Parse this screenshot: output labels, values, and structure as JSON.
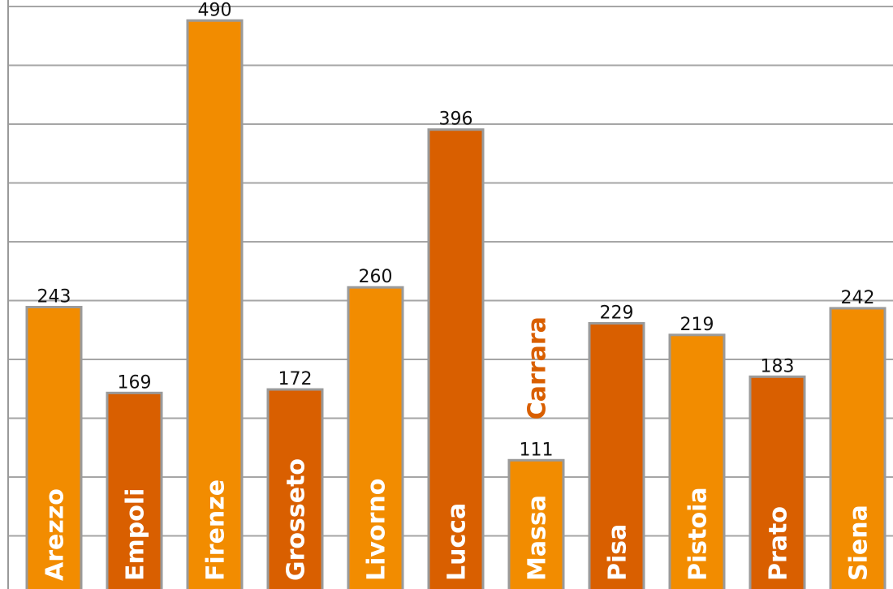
{
  "chart_data": {
    "type": "bar",
    "categories": [
      "Arezzo",
      "Empoli",
      "Firenze",
      "Grosseto",
      "Livorno",
      "Lucca",
      "Massa Carrara",
      "Pisa",
      "Pistoia",
      "Prato",
      "Siena"
    ],
    "values": [
      243,
      169,
      490,
      172,
      260,
      396,
      111,
      229,
      219,
      183,
      242
    ],
    "label_lines": [
      [
        "Arezzo"
      ],
      [
        "Empoli"
      ],
      [
        "Firenze"
      ],
      [
        "Grosseto"
      ],
      [
        "Livorno"
      ],
      [
        "Lucca"
      ],
      [
        "Massa",
        "Carrara"
      ],
      [
        "Pisa"
      ],
      [
        "Pistoia"
      ],
      [
        "Prato"
      ],
      [
        "Siena"
      ]
    ],
    "bar_colors": [
      "#F28C00",
      "#D95F00",
      "#F28C00",
      "#D95F00",
      "#F28C00",
      "#D95F00",
      "#F28C00",
      "#D95F00",
      "#F28C00",
      "#D95F00",
      "#F28C00"
    ],
    "ylim": [
      0,
      500
    ],
    "grid": true,
    "title": "",
    "xlabel": "",
    "ylabel": ""
  }
}
